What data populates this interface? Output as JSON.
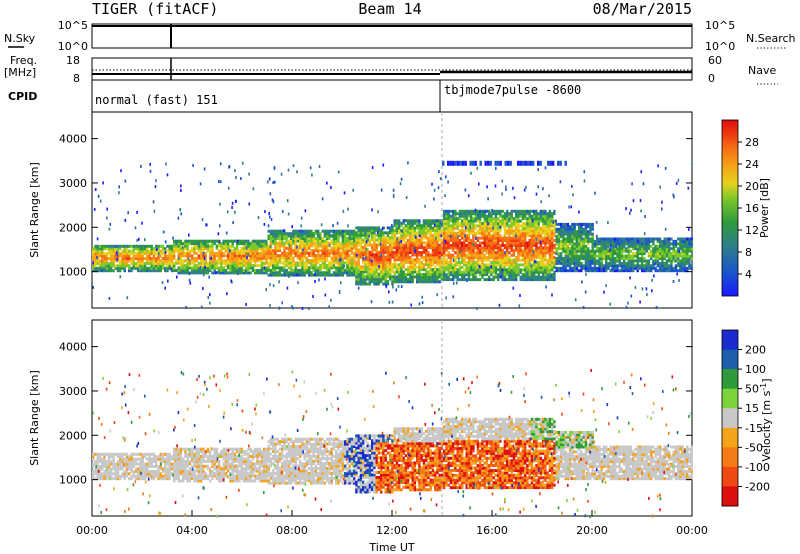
{
  "header": {
    "title": "TIGER (fitACF)",
    "beam": "Beam 14",
    "date": "08/Mar/2015"
  },
  "status_panels": {
    "nsky_label": "N.Sky",
    "nsky_ticks": [
      "10^5",
      "10^0"
    ],
    "nsearch_label": "N.Search",
    "nsearch_ticks": [
      "10^5",
      "10^0"
    ],
    "freq_label": "Freq.",
    "freq_unit": "[MHz]",
    "freq_ticks": [
      "18",
      "8"
    ],
    "nave_label": "Nave",
    "nave_ticks": [
      "60",
      "0"
    ],
    "cpid_label": "CPID",
    "cpid_segments": [
      {
        "start_hour": 0,
        "text": "normal (fast) 151"
      },
      {
        "start_hour": 14,
        "text": "tbjmode7pulse -8600"
      }
    ]
  },
  "chart_data": [
    {
      "type": "heatmap",
      "panel": "power",
      "ylabel": "Slant Range [km]",
      "xlabel": "",
      "xlim_hours": [
        0,
        24
      ],
      "ylim_km": [
        180,
        4600
      ],
      "yticks": [
        "1000",
        "2000",
        "3000",
        "4000"
      ],
      "colorbar": {
        "label": "Power [dB]",
        "ticks": [
          "4",
          "8",
          "12",
          "16",
          "20",
          "24",
          "28"
        ],
        "colors": [
          "#1a1aff",
          "#1a56c8",
          "#2e7d8c",
          "#2f9a3c",
          "#7ac82a",
          "#e6d21e",
          "#f5a216",
          "#f56e14",
          "#ee3a10",
          "#dd0e0e"
        ]
      },
      "echo_regions": [
        {
          "name": "ionospheric band",
          "t_start": 0.0,
          "t_end": 11.0,
          "r_low": 850,
          "r_high": 1650,
          "dominant": "green/orange"
        },
        {
          "name": "ionospheric band",
          "t_start": 11.0,
          "t_end": 18.5,
          "r_low": 700,
          "r_high": 2300,
          "dominant": "red/orange"
        },
        {
          "name": "ionospheric band",
          "t_start": 18.5,
          "t_end": 24.0,
          "r_low": 900,
          "r_high": 2000,
          "dominant": "blue/green"
        },
        {
          "name": "far range scatter",
          "t_start": 14.0,
          "t_end": 19.0,
          "r_low": 3300,
          "r_high": 3500,
          "dominant": "blue"
        }
      ]
    },
    {
      "type": "heatmap",
      "panel": "velocity",
      "ylabel": "Slant Range [km]",
      "xlabel": "Time UT",
      "xlim_hours": [
        0,
        24
      ],
      "ylim_km": [
        180,
        4600
      ],
      "yticks": [
        "1000",
        "2000",
        "3000",
        "4000"
      ],
      "xticks": [
        "00:00",
        "04:00",
        "08:00",
        "12:00",
        "16:00",
        "20:00",
        "00:00"
      ],
      "colorbar": {
        "label": "Velocity [m s-1]",
        "ticks": [
          "200",
          "100",
          "50",
          "15",
          "-15",
          "-50",
          "-100",
          "-200"
        ],
        "colors": [
          "#1a2bd0",
          "#1f5ea8",
          "#2f9a3c",
          "#7cd43a",
          "#c8c8c8",
          "#f5a41a",
          "#f57a18",
          "#f04a12",
          "#dd0e0e"
        ]
      },
      "echo_regions": [
        {
          "name": "ground scatter",
          "t_start": 0.0,
          "t_end": 11.0,
          "r_low": 850,
          "r_high": 1650,
          "dominant": "grey"
        },
        {
          "name": "ionospheric scatter",
          "t_start": 11.0,
          "t_end": 18.5,
          "r_low": 700,
          "r_high": 1800,
          "dominant": "orange/red"
        },
        {
          "name": "ground scatter",
          "t_start": 13.0,
          "t_end": 19.5,
          "r_low": 1800,
          "r_high": 2300,
          "dominant": "grey"
        },
        {
          "name": "ground scatter",
          "t_start": 19.5,
          "t_end": 24.0,
          "r_low": 900,
          "r_high": 1500,
          "dominant": "grey"
        }
      ]
    }
  ]
}
